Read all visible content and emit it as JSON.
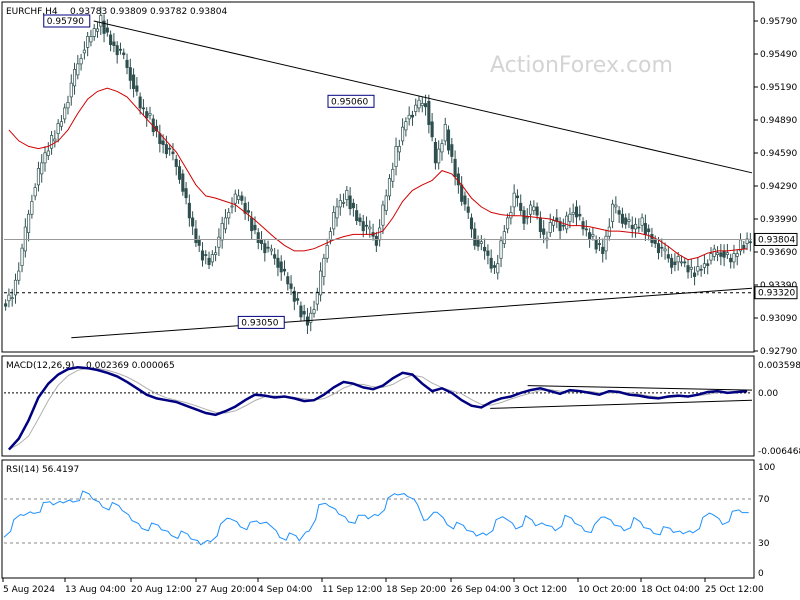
{
  "chart_data": {
    "type": "candlestick",
    "symbol_header": "EURCHF,H4",
    "ohlc": [
      "0.93783",
      "0.93809",
      "0.93782",
      "0.93804"
    ],
    "watermark": "ActionForex.com",
    "colors": {
      "candle": "#2f4f4f",
      "ma": "#d00000",
      "macd": "#000080",
      "rsi": "#1e90ff",
      "label_bg": "#ffffff"
    },
    "price_axis": {
      "min": 0.9279,
      "max": 0.9579,
      "ticks": [
        "0.95790",
        "0.95490",
        "0.95190",
        "0.94890",
        "0.94590",
        "0.94290",
        "0.93990",
        "0.93690",
        "0.93390",
        "0.93090",
        "0.92790"
      ]
    },
    "current_price_label": "0.93804",
    "support_label": "0.93320",
    "annotations": [
      {
        "text": "0.95790",
        "x": 12,
        "price": 0.9579
      },
      {
        "text": "0.95060",
        "x": 50,
        "price": 0.9506
      },
      {
        "text": "0.93050",
        "x": 38,
        "price": 0.9305
      }
    ],
    "trendlines": [
      {
        "name": "upper",
        "from": {
          "x": 12,
          "price": 0.9579
        },
        "to": {
          "x": 100,
          "price": 0.9441
        }
      },
      {
        "name": "lower",
        "from": {
          "x": 9,
          "price": 0.9291
        },
        "to": {
          "x": 100,
          "price": 0.9336
        }
      }
    ],
    "x_labels": [
      "5 Aug 2024",
      "13 Aug 04:00",
      "20 Aug 12:00",
      "27 Aug 20:00",
      "4 Sep 04:00",
      "11 Sep 12:00",
      "18 Sep 20:00",
      "26 Sep 04:00",
      "3 Oct 12:00",
      "10 Oct 20:00",
      "18 Oct 04:00",
      "25 Oct 12:00"
    ],
    "closes": [
      0.933,
      0.937,
      0.942,
      0.945,
      0.947,
      0.949,
      0.952,
      0.955,
      0.9565,
      0.9579,
      0.956,
      0.955,
      0.953,
      0.95,
      0.949,
      0.947,
      0.946,
      0.944,
      0.94,
      0.937,
      0.936,
      0.938,
      0.941,
      0.942,
      0.94,
      0.938,
      0.937,
      0.936,
      0.934,
      0.932,
      0.9305,
      0.933,
      0.938,
      0.941,
      0.942,
      0.94,
      0.939,
      0.938,
      0.942,
      0.946,
      0.949,
      0.95,
      0.9506,
      0.945,
      0.948,
      0.944,
      0.941,
      0.938,
      0.937,
      0.935,
      0.939,
      0.942,
      0.94,
      0.941,
      0.938,
      0.94,
      0.939,
      0.941,
      0.939,
      0.938,
      0.937,
      0.941,
      0.94,
      0.939,
      0.9395,
      0.938,
      0.937,
      0.936,
      0.936,
      0.935,
      0.9355,
      0.9365,
      0.937,
      0.936,
      0.9375,
      0.938
    ],
    "ma_values": [
      0.948,
      0.947,
      0.9465,
      0.9463,
      0.9465,
      0.947,
      0.948,
      0.9495,
      0.9508,
      0.9515,
      0.9518,
      0.9515,
      0.951,
      0.95,
      0.949,
      0.948,
      0.947,
      0.946,
      0.9445,
      0.943,
      0.942,
      0.9418,
      0.9415,
      0.9412,
      0.9405,
      0.9398,
      0.939,
      0.9382,
      0.9375,
      0.937,
      0.937,
      0.9372,
      0.9376,
      0.938,
      0.9383,
      0.9385,
      0.9385,
      0.9385,
      0.9388,
      0.94,
      0.9415,
      0.9425,
      0.943,
      0.9434,
      0.9443,
      0.944,
      0.943,
      0.9418,
      0.941,
      0.9405,
      0.9403,
      0.9402,
      0.9402,
      0.9401,
      0.94,
      0.9399,
      0.9396,
      0.9393,
      0.9393,
      0.9392,
      0.939,
      0.9388,
      0.9388,
      0.9387,
      0.9386,
      0.9384,
      0.938,
      0.9374,
      0.9367,
      0.9362,
      0.9364,
      0.9368,
      0.937,
      0.937,
      0.9371,
      0.9372
    ],
    "macd": {
      "label": "MACD(12,26,9)",
      "values_text": "0.002369 0.000065",
      "axis_ticks": [
        "0.003598",
        "0.00",
        "-0.006468"
      ],
      "range": [
        -0.006468,
        0.003598
      ],
      "values": [
        -0.0062,
        -0.005,
        -0.003,
        -0.0005,
        0.001,
        0.002,
        0.0026,
        0.0028,
        0.0027,
        0.0025,
        0.0022,
        0.0018,
        0.0012,
        0.0005,
        -0.0002,
        -0.0006,
        -0.0008,
        -0.001,
        -0.0014,
        -0.0018,
        -0.0022,
        -0.0024,
        -0.002,
        -0.0015,
        -0.0008,
        -0.0002,
        -0.0003,
        -0.0005,
        -0.0004,
        -0.0006,
        -0.0009,
        -0.0008,
        -0.0002,
        0.0006,
        0.0012,
        0.001,
        0.0006,
        0.0004,
        0.0008,
        0.0016,
        0.0022,
        0.002,
        0.001,
        0.0002,
        0.0005,
        0.0,
        -0.0008,
        -0.0014,
        -0.0016,
        -0.001,
        -0.0006,
        -0.0004,
        0.0,
        0.0003,
        0.0005,
        0.0002,
        -0.0001,
        0.0003,
        0.0002,
        0.0,
        -0.0002,
        0.0002,
        0.0001,
        -0.0002,
        -0.0003,
        -0.0005,
        -0.0006,
        -0.0004,
        -0.0003,
        -0.0004,
        -0.0002,
        0.0001,
        0.0002,
        0.0,
        0.0001,
        0.0002
      ],
      "trendlines": [
        {
          "from": {
            "x": 70,
            "v": 0.0008
          },
          "to": {
            "x": 100,
            "v": 0.0003
          }
        },
        {
          "from": {
            "x": 65,
            "v": -0.0017
          },
          "to": {
            "x": 100,
            "v": -0.0008
          }
        }
      ]
    },
    "rsi": {
      "label": "RSI(14) 56.4197",
      "axis_ticks": [
        100,
        70,
        30,
        0
      ],
      "levels": [
        70,
        30
      ],
      "values": [
        40,
        48,
        55,
        60,
        62,
        63,
        68,
        72,
        74,
        70,
        66,
        62,
        58,
        52,
        48,
        45,
        42,
        40,
        36,
        32,
        30,
        36,
        44,
        52,
        48,
        44,
        46,
        48,
        40,
        36,
        32,
        44,
        60,
        62,
        58,
        54,
        52,
        52,
        58,
        66,
        72,
        74,
        70,
        48,
        58,
        50,
        44,
        40,
        38,
        42,
        48,
        52,
        46,
        50,
        44,
        48,
        46,
        52,
        48,
        44,
        42,
        52,
        48,
        46,
        50,
        44,
        42,
        40,
        38,
        40,
        44,
        50,
        56,
        50,
        54,
        56
      ]
    }
  }
}
